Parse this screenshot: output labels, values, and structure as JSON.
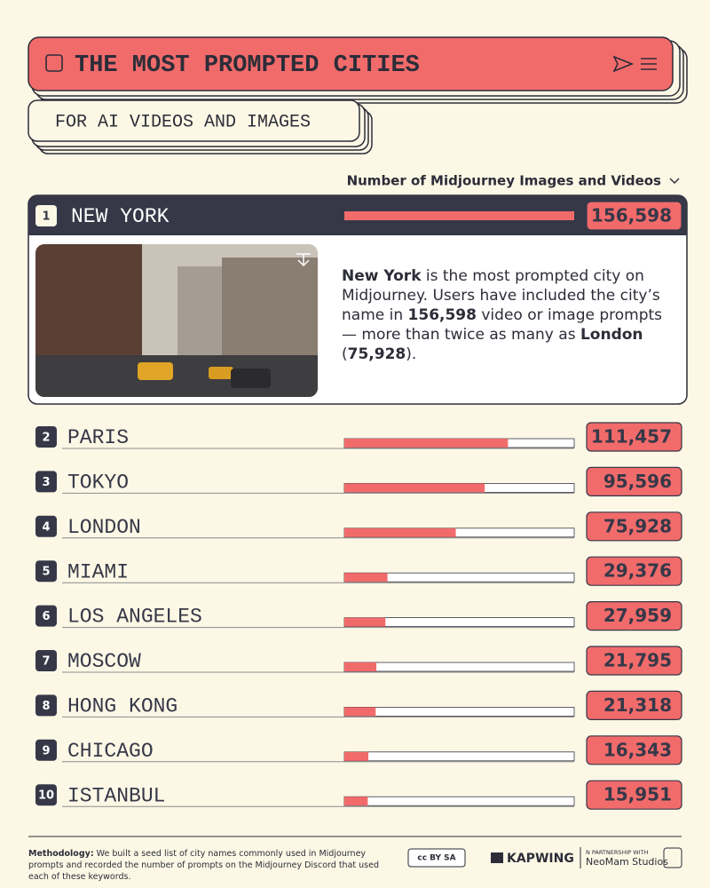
{
  "chart_data": {
    "type": "bar",
    "title": "THE MOST PROMPTED CITIES",
    "subtitle": "FOR AI VIDEOS AND IMAGES",
    "axis_label": "Number of Midjourney Images and Videos",
    "ranks": [
      1,
      2,
      3,
      4,
      5,
      6,
      7,
      8,
      9,
      10
    ],
    "categories": [
      "NEW YORK",
      "PARIS",
      "TOKYO",
      "LONDON",
      "MIAMI",
      "LOS ANGELES",
      "MOSCOW",
      "HONG KONG",
      "CHICAGO",
      "ISTANBUL"
    ],
    "values": [
      156598,
      111457,
      95596,
      75928,
      29376,
      27959,
      21795,
      21318,
      16343,
      15951
    ],
    "value_labels": [
      "156,598",
      "111,457",
      "95,596",
      "75,928",
      "29,376",
      "27,959",
      "21,795",
      "21,318",
      "16,343",
      "15,951"
    ],
    "color": "#f26b6b",
    "description": [
      {
        "text": "New York",
        "bold": true
      },
      {
        "text": " is the most prompted city on Midjourney. Users have included the city’s name in ",
        "bold": false
      },
      {
        "text": "156,598",
        "bold": true
      },
      {
        "text": " video or image prompts — more than twice as many as ",
        "bold": false
      },
      {
        "text": "London",
        "bold": true
      },
      {
        "text": " (",
        "bold": false
      },
      {
        "text": "75,928",
        "bold": true
      },
      {
        "text": ").",
        "bold": false
      }
    ]
  },
  "footer": {
    "methodology_label": "Methodology:",
    "methodology": "We built a seed list of city names commonly used in Midjourney prompts and recorded the number of prompts on the Midjourney Discord that used each of these keywords.",
    "license": "cc BY SA",
    "brand": "KAPWING",
    "partner_note": "N PARTNERSHIP WITH",
    "partner": "NeoMam Studios"
  }
}
